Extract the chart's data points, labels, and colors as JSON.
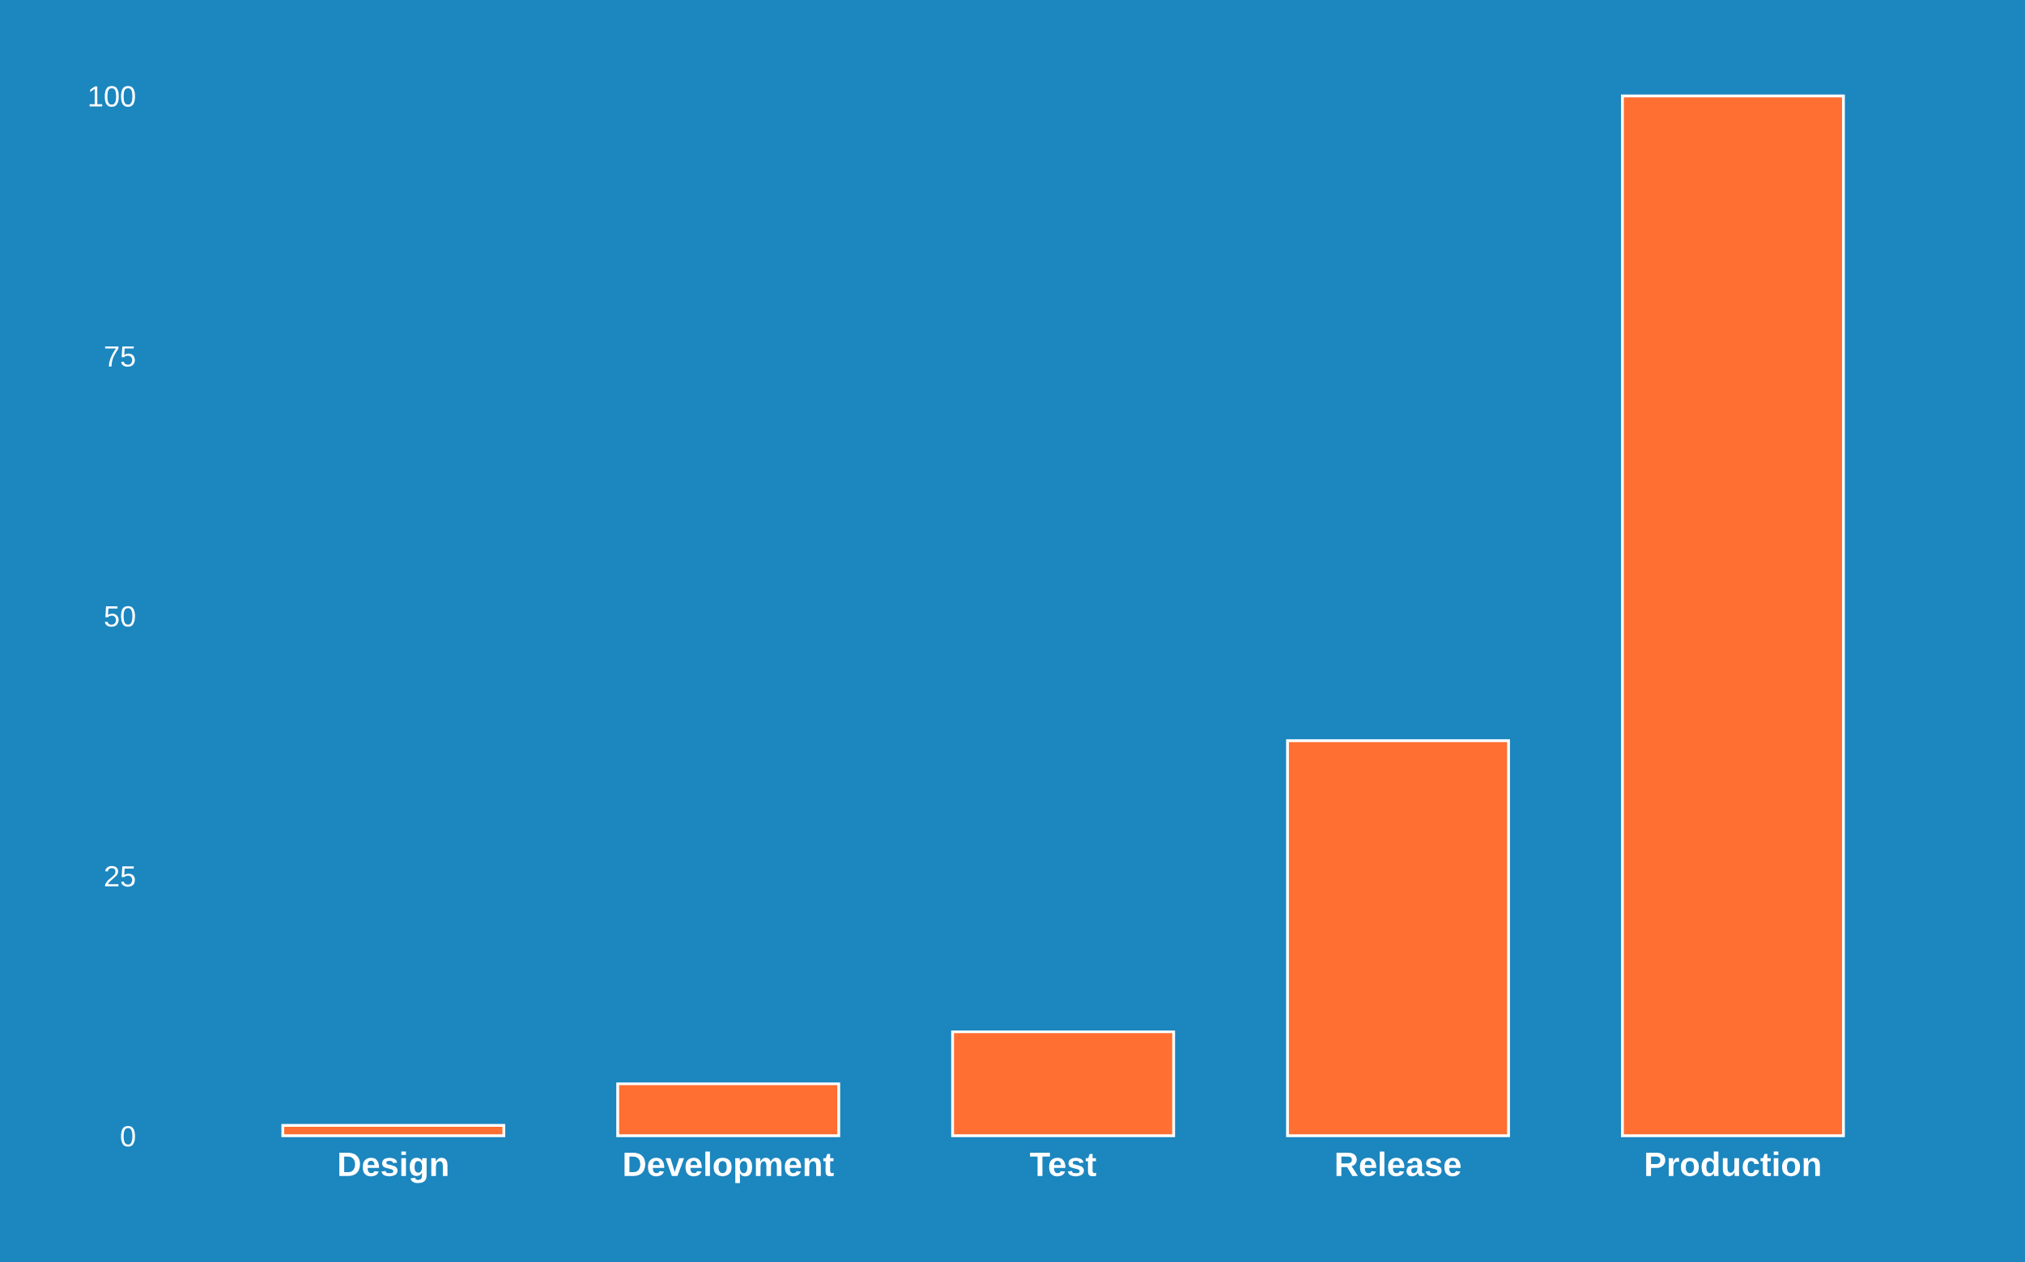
{
  "chart_data": {
    "type": "bar",
    "categories": [
      "Design",
      "Development",
      "Test",
      "Release",
      "Production"
    ],
    "values": [
      1,
      5,
      10,
      38,
      100
    ],
    "color": "#ff6f31",
    "ylim": [
      0,
      100
    ],
    "yticks": [
      0,
      25,
      50,
      75,
      100
    ],
    "grid": false
  }
}
